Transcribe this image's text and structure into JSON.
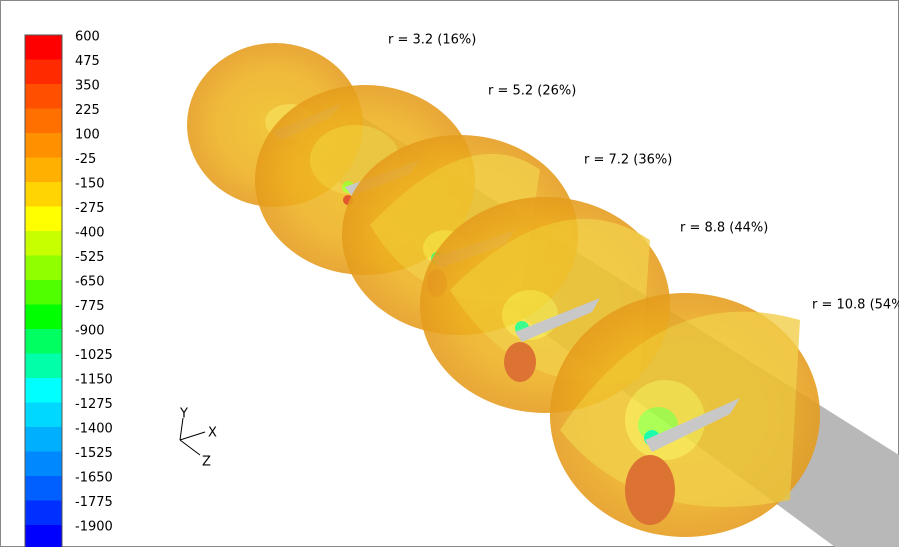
{
  "legend": {
    "levels": [
      {
        "label": "600",
        "color": "#ff0000"
      },
      {
        "label": "475",
        "color": "#ff2a00"
      },
      {
        "label": "350",
        "color": "#ff5000"
      },
      {
        "label": "225",
        "color": "#ff7000"
      },
      {
        "label": "100",
        "color": "#ff9000"
      },
      {
        "label": "-25",
        "color": "#ffb000"
      },
      {
        "label": "-150",
        "color": "#ffd400"
      },
      {
        "label": "-275",
        "color": "#ffff00"
      },
      {
        "label": "-400",
        "color": "#c8ff00"
      },
      {
        "label": "-525",
        "color": "#90ff00"
      },
      {
        "label": "-650",
        "color": "#50ff00"
      },
      {
        "label": "-775",
        "color": "#00ff00"
      },
      {
        "label": "-900",
        "color": "#00ff60"
      },
      {
        "label": "-1025",
        "color": "#00ffa8"
      },
      {
        "label": "-1150",
        "color": "#00ffff"
      },
      {
        "label": "-1275",
        "color": "#00d8ff"
      },
      {
        "label": "-1400",
        "color": "#00b0ff"
      },
      {
        "label": "-1525",
        "color": "#0088ff"
      },
      {
        "label": "-1650",
        "color": "#0060ff"
      },
      {
        "label": "-1775",
        "color": "#0030ff"
      },
      {
        "label": "-1900",
        "color": "#0000ff"
      }
    ]
  },
  "slices": [
    {
      "label": "r = 3.2 (16%)"
    },
    {
      "label": "r = 5.2 (26%)"
    },
    {
      "label": "r = 7.2 (36%)"
    },
    {
      "label": "r = 8.8 (44%)"
    },
    {
      "label": "r = 10.8 (54%)"
    }
  ],
  "axes": {
    "y": "Y",
    "x": "X",
    "z": "Z"
  }
}
